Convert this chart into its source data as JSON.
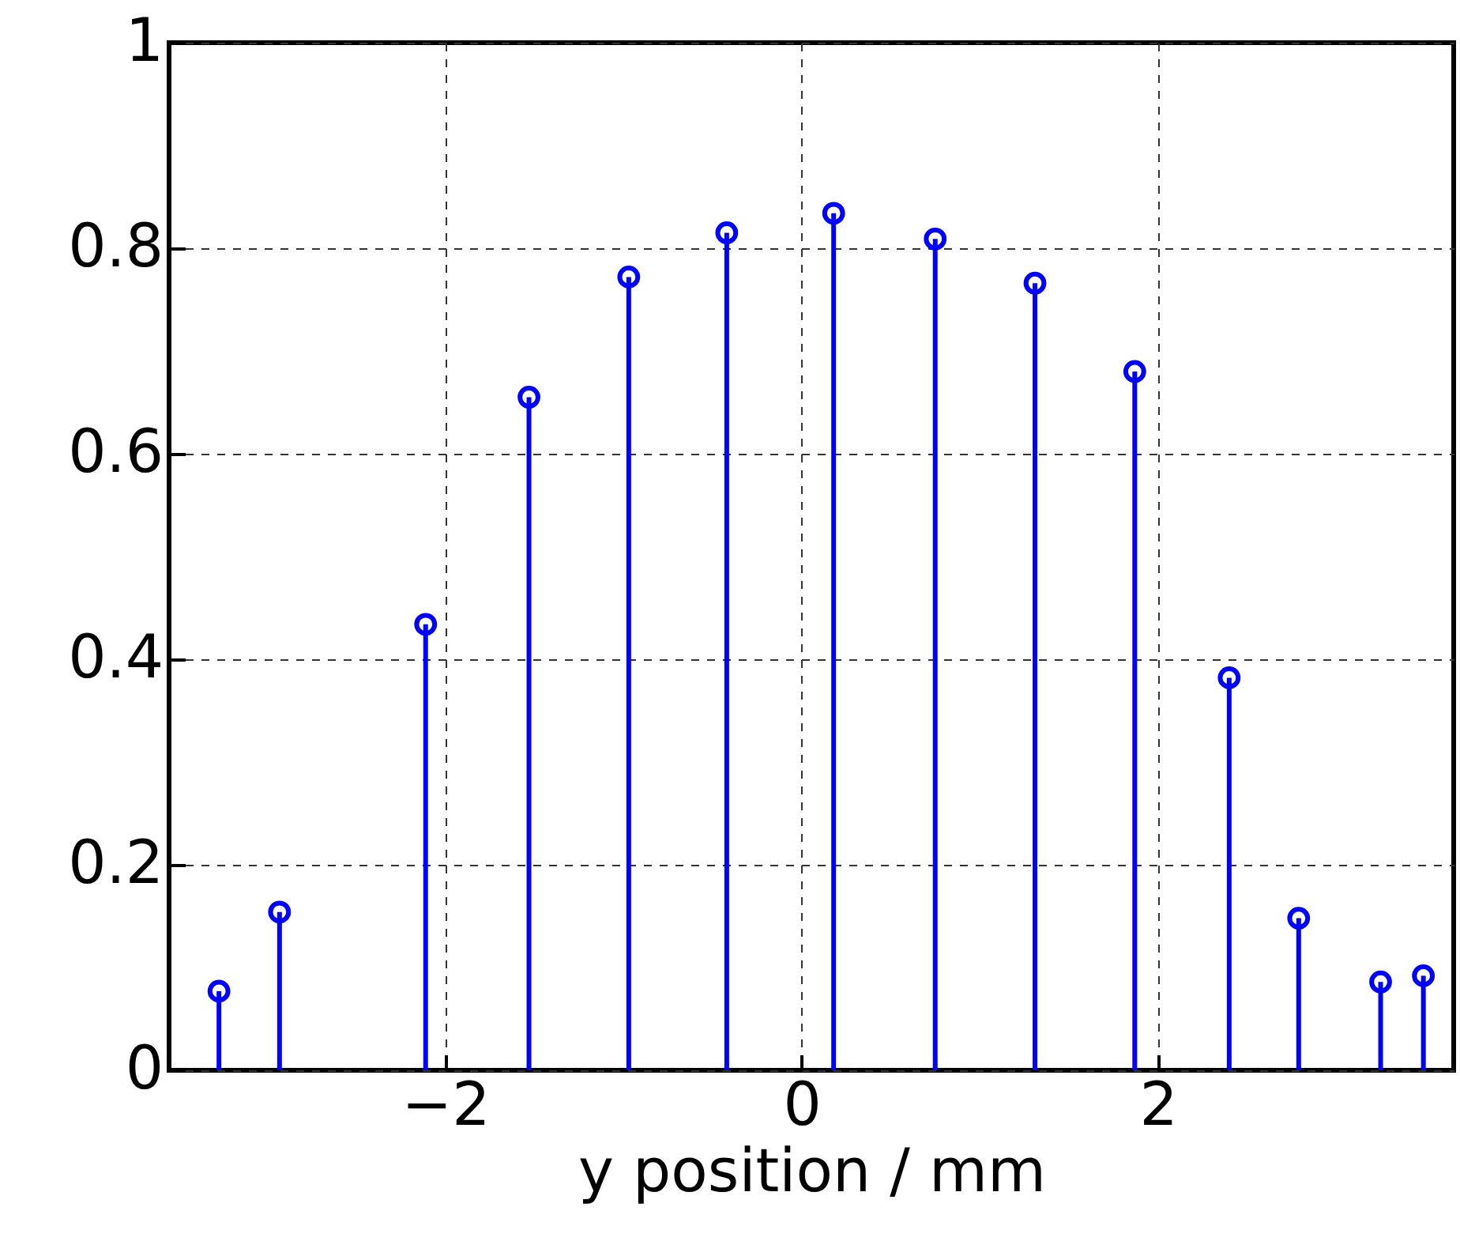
{
  "chart_data": {
    "type": "lollipop",
    "xlabel": "y position / mm",
    "x": [
      -3.27,
      -2.93,
      -2.11,
      -1.53,
      -0.97,
      -0.42,
      0.18,
      0.75,
      1.31,
      1.87,
      2.4,
      2.79,
      3.25,
      3.49
    ],
    "values": [
      0.077,
      0.154,
      0.434,
      0.655,
      0.772,
      0.815,
      0.834,
      0.809,
      0.766,
      0.68,
      0.382,
      0.148,
      0.086,
      0.092
    ],
    "color": "#0000ff",
    "marker": "circle",
    "xlim": [
      -3.55,
      3.66
    ],
    "ylim": [
      0,
      1
    ],
    "xticks": [
      -2,
      0,
      2
    ],
    "yticks": [
      0,
      0.2,
      0.4,
      0.6,
      0.8,
      1
    ],
    "grid": true
  }
}
